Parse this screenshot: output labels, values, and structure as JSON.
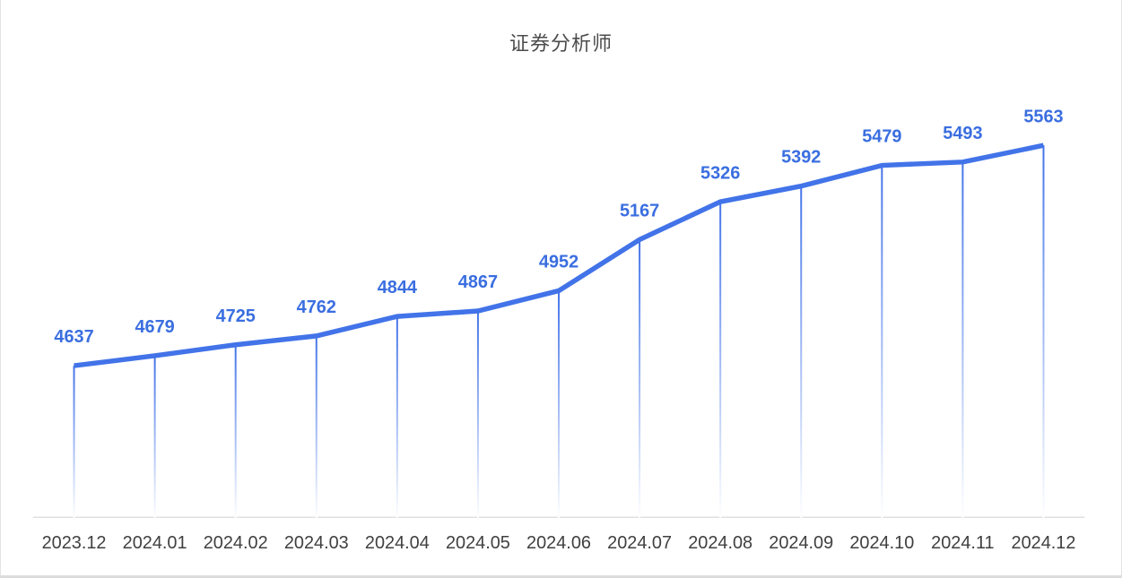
{
  "page": {
    "background": "#ffffff",
    "border_color": "#e4e4e4"
  },
  "chart_data": {
    "type": "line",
    "title": "证券分析师",
    "categories": [
      "2023.12",
      "2024.01",
      "2024.02",
      "2024.03",
      "2024.04",
      "2024.05",
      "2024.06",
      "2024.07",
      "2024.08",
      "2024.09",
      "2024.10",
      "2024.11",
      "2024.12"
    ],
    "values": [
      4637,
      4679,
      4725,
      4762,
      4844,
      4867,
      4952,
      5167,
      5326,
      5392,
      5479,
      5493,
      5563
    ],
    "xlabel": "",
    "ylabel": "",
    "ylim": [
      4637,
      5563
    ],
    "grid": false,
    "legend": false,
    "y_axis_visible": false,
    "data_labels_visible": true,
    "drop_lines": "vertical gradient fading to white",
    "colors": {
      "line": "#4273e8",
      "data_label": "#3a6ee0",
      "axis_line": "#e0e0e0",
      "tick_label": "#404040",
      "title": "#4d4d4d"
    }
  }
}
